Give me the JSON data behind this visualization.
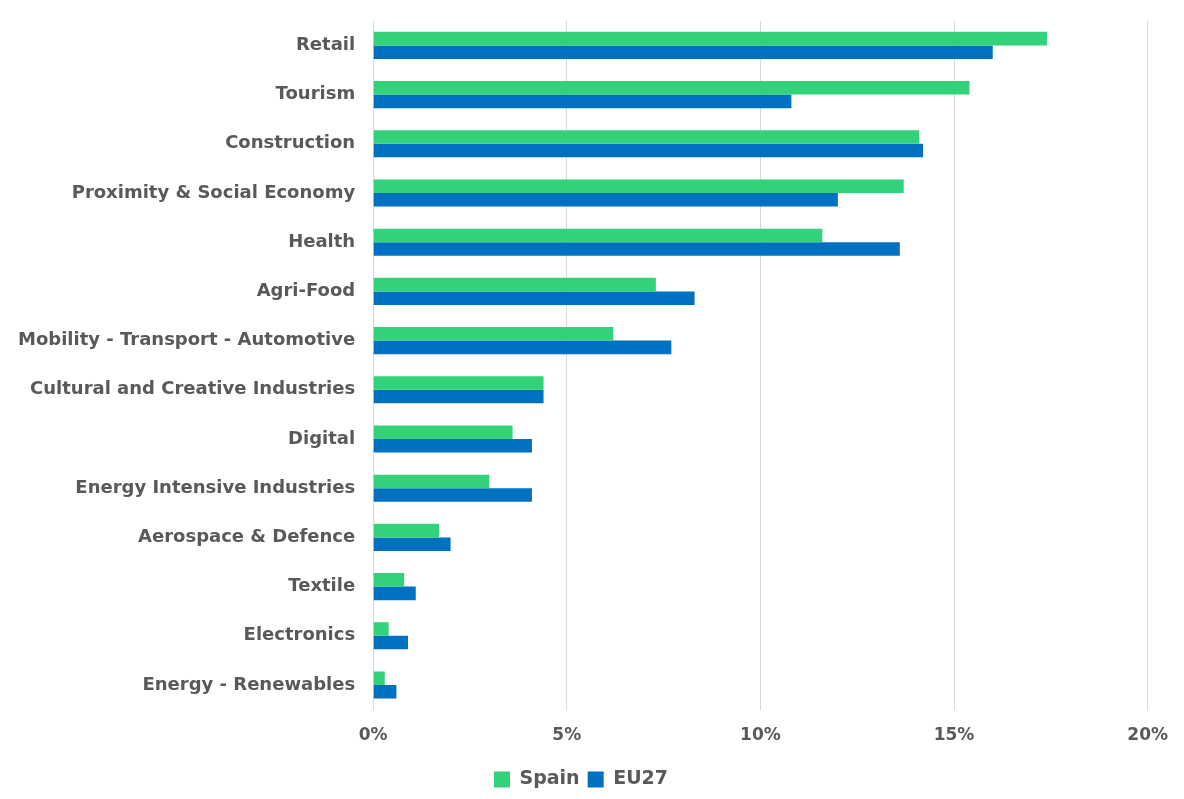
{
  "chart_data": {
    "type": "bar",
    "orientation": "horizontal",
    "categories": [
      "Retail",
      "Tourism",
      "Construction",
      "Proximity & Social Economy",
      "Health",
      "Agri-Food",
      "Mobility - Transport - Automotive",
      "Cultural and Creative Industries",
      "Digital",
      "Energy Intensive Industries",
      "Aerospace & Defence",
      "Textile",
      "Electronics",
      "Energy - Renewables"
    ],
    "series": [
      {
        "name": "Spain",
        "color": "#33d17a",
        "values": [
          17.4,
          15.4,
          14.1,
          13.7,
          11.6,
          7.3,
          6.2,
          4.4,
          3.6,
          3.0,
          1.7,
          0.8,
          0.4,
          0.3
        ]
      },
      {
        "name": "EU27",
        "color": "#0070c0",
        "values": [
          16.0,
          10.8,
          14.2,
          12.0,
          13.6,
          8.3,
          7.7,
          4.4,
          4.1,
          4.1,
          2.0,
          1.1,
          0.9,
          0.6
        ]
      }
    ],
    "xlim": [
      0,
      20
    ],
    "xticks": [
      {
        "value": 0,
        "label": "0%"
      },
      {
        "value": 5,
        "label": "5%"
      },
      {
        "value": 10,
        "label": "10%"
      },
      {
        "value": 15,
        "label": "15%"
      },
      {
        "value": 20,
        "label": "20%"
      }
    ],
    "grid": "x",
    "legend": "bottom"
  }
}
